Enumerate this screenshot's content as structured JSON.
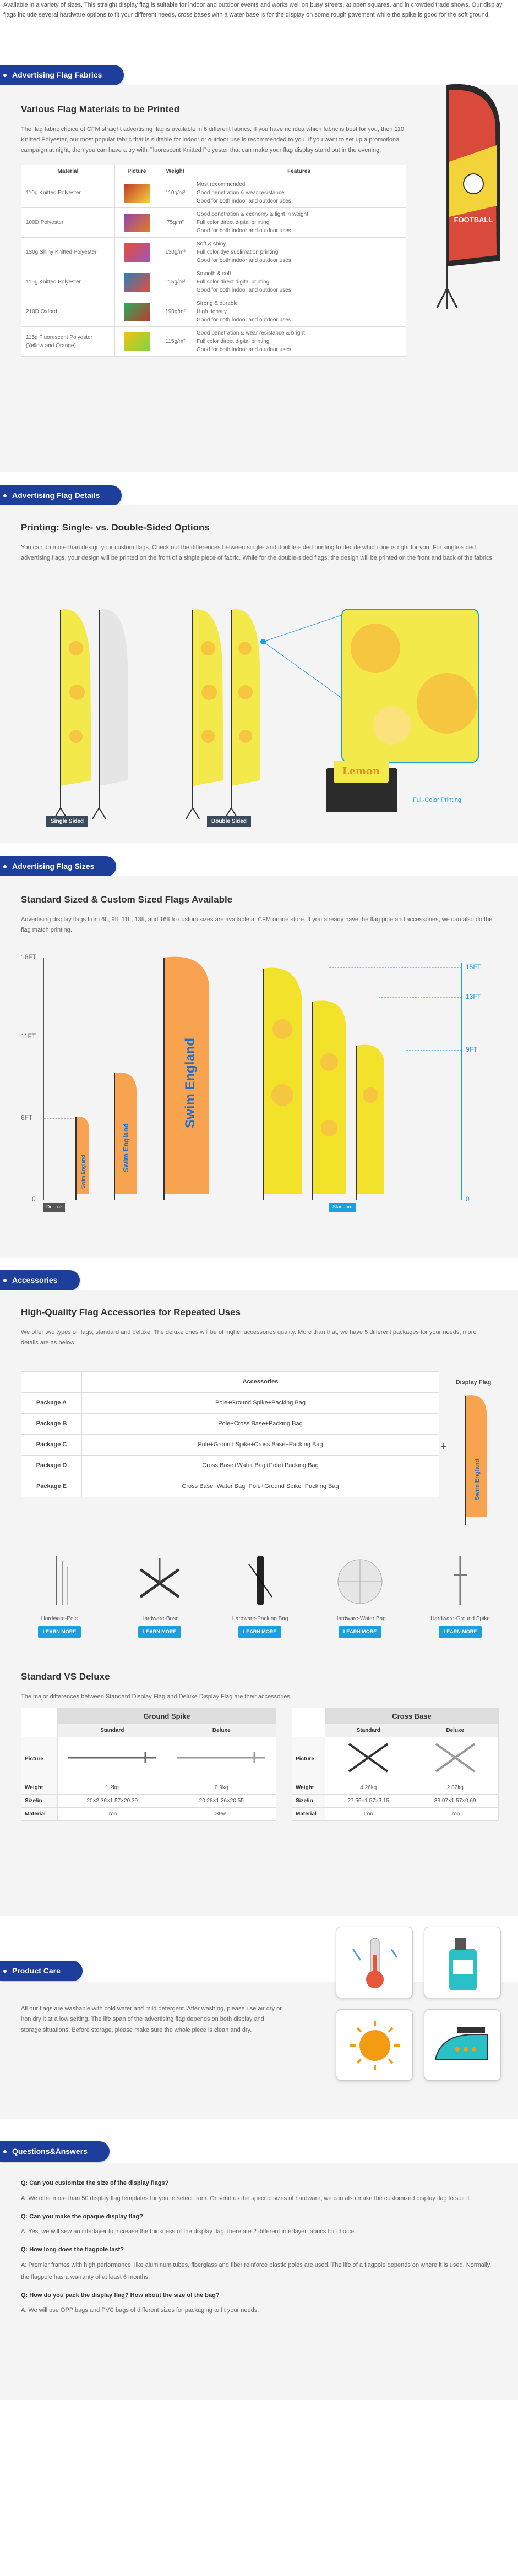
{
  "intro": {
    "text": "Available in a variety of sizes. This straight display flag is suitable for indoor and outdoor events and works well on busy streets, at open squares, and in crowded trade shows. Our display flags include several hardware options to fit your different needs, cross bases with a water base is for the display on some rough pavement while the spike is good for the soft ground."
  },
  "fabrics": {
    "tab": "Advertising Flag Fabrics",
    "heading": "Various Flag Materials to be Printed",
    "text": "The flag fabric choice of CFM straight advertising flag is available in 6 different fabrics. If you have no idea which fabric is best for you, then 110 Knitted Polyester, our most popular fabric that is suitable for indoor or outdoor use is recommended to you. If you want to set up a promotional campaign at night, then you can have a try with Fluorescent Knitted Polyester that can make your flag display stand out in the evening.",
    "columns": [
      "Material",
      "Picture",
      "Weight",
      "Features"
    ],
    "rows": [
      {
        "material": "110g Knitted Polyester",
        "weight": "110g/m²",
        "features": [
          "Most recommended",
          "Good penetration & wear resistance",
          "Good for both indoor and outdoor uses"
        ]
      },
      {
        "material": "100D Polyester",
        "weight": "75g/m²",
        "features": [
          "Good penetration & economy & light in weight",
          "Full color direct digital printing",
          "Good for both indoor and outdoor uses"
        ]
      },
      {
        "material": "130g Shiny Knitted Polyester",
        "weight": "130g/m²",
        "features": [
          "Soft & shiny",
          "Full color dye sublimation printing",
          "Good for both indoor and outdoor uses"
        ]
      },
      {
        "material": "115g Knitted Polyester",
        "weight": "115g/m²",
        "features": [
          "Smooth & soft",
          "Full color direct digital printing",
          "Good for both indoor and outdoor uses"
        ]
      },
      {
        "material": "210D Oxford",
        "weight": "190g/m²",
        "features": [
          "Strong & durable",
          "High density",
          "Good for both indoor and outdoor uses"
        ]
      },
      {
        "material": "115g Fluorescent Polyester (Yellow and Orange)",
        "weight": "115g/m²",
        "features": [
          "Good penetration & wear resistance & bright",
          "Full color direct digital printing",
          "Good for both indoor and outdoor uses"
        ]
      }
    ],
    "flag_text": "FOOTBALL"
  },
  "details": {
    "tab": "Advertising Flag Details",
    "heading": "Printing: Single- vs. Double-Sided Options",
    "text": "You can do more than design your custom flags. Check out the differences between single- and double-sided printing to decide which one is right for you. For single-sided advertising flags, your design will be printed on the front of a single piece of fabric. While for the double-sided flags, the design will be printed on the front and back of the fabrics.",
    "label_single": "Single Sided",
    "label_double": "Double Sided",
    "label_print": "Full-Color Printing",
    "lemon_word": "Lemon"
  },
  "sizes": {
    "tab": "Advertising Flag Sizes",
    "heading": "Standard Sized & Custom Sized Flags Available",
    "text": "Advertising display flags from 6ft, 9ft, 11ft, 13ft, and 16ft to custom sizes are available at CFM online store. If you already have the flag pole and accessories, we can also do the flag match printing.",
    "left_ticks": [
      "16FT",
      "11FT",
      "6FT",
      "0"
    ],
    "right_ticks": [
      "15FT",
      "13FT",
      "9FT",
      "0"
    ],
    "label_deluxe": "Deluxe",
    "label_standard": "Standard",
    "flag_word": "Swim England"
  },
  "accessories": {
    "tab": "Accessories",
    "heading": "High-Quality Flag Accessories for Repeated Uses",
    "text": "We offer two types of flags, standard and deluxe. The deluxe ones will be of higher accessories quality. More than that, we have 5 different packages for your needs, more details are as below.",
    "col_accessories": "Accessories",
    "col_display": "Display Flag",
    "packages": [
      {
        "name": "Package A",
        "items": "Pole+Ground Spike+Packing Bag"
      },
      {
        "name": "Package B",
        "items": "Pole+Cross Base+Packing Bag"
      },
      {
        "name": "Package C",
        "items": "Pole+Ground Spike+Cross Base+Packing Bag"
      },
      {
        "name": "Package D",
        "items": "Cross Base+Water Bag+Pole+Packing Bag"
      },
      {
        "name": "Package E",
        "items": "Cross Base+Water Bag+Pole+Ground Spike+Packing Bag"
      }
    ],
    "plus": "+",
    "hardware": [
      {
        "name": "Hardware-Pole"
      },
      {
        "name": "Hardware-Base"
      },
      {
        "name": "Hardware-Packing Bag"
      },
      {
        "name": "Hardware-Water Bag"
      },
      {
        "name": "Hardware-Ground Spike"
      }
    ],
    "learn_more": "LEARN MORE",
    "sd_heading": "Standard VS Deluxe",
    "sd_text": "The major differences between Standard Display Flag and Deluxe Display Flag are their accessories.",
    "spike": {
      "title": "Ground Spike",
      "standard": "Standard",
      "deluxe": "Deluxe",
      "rows": [
        {
          "label": "Picture",
          "s": "",
          "d": ""
        },
        {
          "label": "Weight",
          "s": "1.2kg",
          "d": "0.9kg"
        },
        {
          "label": "Size/in",
          "s": "20×2.36×1.57×20.39",
          "d": "20.28×1.26×20.55"
        },
        {
          "label": "Material",
          "s": "Iron",
          "d": "Steel"
        }
      ]
    },
    "cross": {
      "title": "Cross Base",
      "standard": "Standard",
      "deluxe": "Deluxe",
      "rows": [
        {
          "label": "Picture",
          "s": "",
          "d": ""
        },
        {
          "label": "Weight",
          "s": "4.26kg",
          "d": "2.82kg"
        },
        {
          "label": "Size/in",
          "s": "27.56×1.57×3.15",
          "d": "33.07×1.57×0.69"
        },
        {
          "label": "Material",
          "s": "Iron",
          "d": "Iron"
        }
      ]
    }
  },
  "care": {
    "tab": "Product Care",
    "text": "All our flags are washable with cold water and mild detergent. After washing, please use air dry or iron dry it at a low setting. The life span of the advertising flag depends on both display and storage situations. Before storage, please make sure the whole piece is clean and dry."
  },
  "qa": {
    "tab": "Questions&Answers",
    "items": [
      {
        "q": "Q: Can you customize the size of the display flags?",
        "a": "A: We offer more than 50 display flag templates for you to select from. Or send us the specific sizes of hardware, we can also make the customized display flag to suit it."
      },
      {
        "q": "Q: Can you make the opaque display flag?",
        "a": "A: Yes, we will sew an interlayer to increase the thickness of the display flag; there are 2 different interlayer fabrics for choice."
      },
      {
        "q": "Q: How long does the flagpole last?",
        "a": "A: Premier frames with high performance, like aluminum tubes, fiberglass and fiber reinforce plastic poles are used. The life of a flagpole depends on where it is used. Normally, the flagpole has a warranty of at least 6 months."
      },
      {
        "q": "Q: How do you pack the display flag? How about the size of the bag?",
        "a": "A: We will use OPP bags and PVC bags of different sizes for packaging to fit your needs."
      }
    ]
  },
  "colors": {
    "blue": "#1d3f9b",
    "accent": "#1a9fe0",
    "orange": "#f7a350",
    "yellow": "#f2e22a"
  }
}
